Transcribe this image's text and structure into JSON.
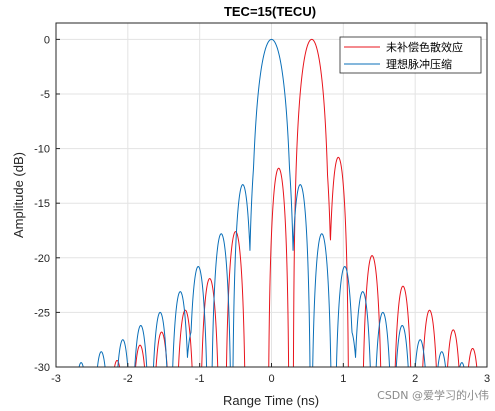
{
  "chart_data": {
    "type": "line",
    "title": "TEC=15(TECU)",
    "xlabel": "Range Time (ns)",
    "ylabel": "Amplitude (dB)",
    "xlim": [
      -3,
      3
    ],
    "ylim": [
      -30,
      1.5
    ],
    "xticks": [
      -3,
      -2,
      -1,
      0,
      1,
      2,
      3
    ],
    "xtick_labels": [
      "-3",
      "-2",
      "-1",
      "0",
      "1",
      "2",
      "3"
    ],
    "yticks": [
      0,
      -5,
      -10,
      -15,
      -20,
      -25,
      -30
    ],
    "ytick_labels": [
      "0",
      "-5",
      "-10",
      "-15",
      "-20",
      "-25",
      "-30"
    ],
    "grid": true,
    "legend_position": "top-right",
    "series": [
      {
        "name": "未补偿色散效应",
        "color": "#e8141c",
        "shift": 0.56,
        "mainlobe_width": 0.26,
        "sidelobes": [
          {
            "x": 0.1,
            "y": -11.8
          },
          {
            "x": 0.93,
            "y": -10.8
          },
          {
            "x": -0.5,
            "y": -17.6
          },
          {
            "x": 1.4,
            "y": -19.8
          },
          {
            "x": -0.86,
            "y": -21.9
          },
          {
            "x": 1.83,
            "y": -22.6
          },
          {
            "x": -1.2,
            "y": -24.8
          },
          {
            "x": 2.2,
            "y": -24.8
          },
          {
            "x": -1.53,
            "y": -26.8
          },
          {
            "x": 2.53,
            "y": -26.6
          },
          {
            "x": -1.83,
            "y": -28.0
          },
          {
            "x": 2.8,
            "y": -28.3
          },
          {
            "x": -2.15,
            "y": -29.4
          }
        ]
      },
      {
        "name": "理想脉冲压缩",
        "color": "#0a6fb8",
        "shift": 0.0,
        "mainlobe_width": 0.3,
        "sidelobes": [
          {
            "x": -0.4,
            "y": -13.3
          },
          {
            "x": 0.4,
            "y": -13.3
          },
          {
            "x": -0.7,
            "y": -17.8
          },
          {
            "x": 0.7,
            "y": -17.8
          },
          {
            "x": -1.02,
            "y": -20.8
          },
          {
            "x": 1.02,
            "y": -20.8
          },
          {
            "x": -1.27,
            "y": -23.1
          },
          {
            "x": 1.27,
            "y": -23.1
          },
          {
            "x": -1.55,
            "y": -25.0
          },
          {
            "x": 1.55,
            "y": -25.0
          },
          {
            "x": -1.82,
            "y": -26.2
          },
          {
            "x": 1.82,
            "y": -26.2
          },
          {
            "x": -2.07,
            "y": -27.5
          },
          {
            "x": 2.07,
            "y": -27.5
          },
          {
            "x": -2.37,
            "y": -28.6
          },
          {
            "x": 2.37,
            "y": -28.6
          },
          {
            "x": -2.65,
            "y": -29.6
          },
          {
            "x": 2.65,
            "y": -29.6
          }
        ]
      }
    ]
  },
  "watermark": "CSDN @爱学习的小伟"
}
